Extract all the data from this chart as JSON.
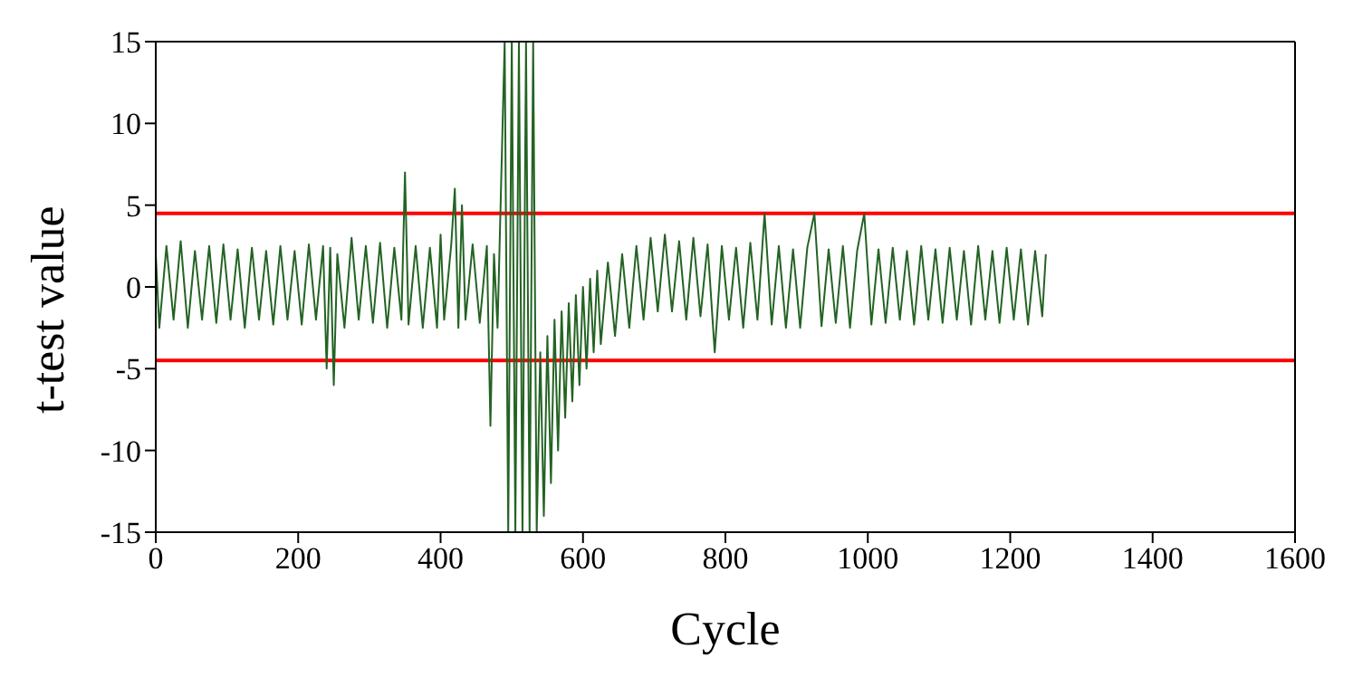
{
  "chart_data": {
    "type": "line",
    "xlabel": "Cycle",
    "ylabel": "t-test value",
    "xlim": [
      0,
      1600
    ],
    "xticks": [
      0,
      200,
      400,
      600,
      800,
      1000,
      1200,
      1400,
      1600
    ],
    "ylim": [
      -15,
      15
    ],
    "yticks": [
      -15,
      -10,
      -5,
      0,
      5,
      10,
      15
    ],
    "legend": false,
    "marker": "none",
    "line_style": "solid",
    "ref_lines": [
      {
        "axis": "y",
        "value": 4.5,
        "color": "#ff0000"
      },
      {
        "axis": "y",
        "value": -4.5,
        "color": "#ff0000"
      }
    ],
    "series": [
      {
        "color": "#236323",
        "x": [
          0,
          5,
          15,
          25,
          35,
          45,
          55,
          65,
          75,
          85,
          95,
          105,
          115,
          125,
          135,
          145,
          155,
          165,
          175,
          185,
          195,
          205,
          215,
          225,
          235,
          240,
          245,
          250,
          255,
          265,
          275,
          285,
          295,
          305,
          315,
          325,
          335,
          345,
          350,
          355,
          365,
          375,
          385,
          395,
          400,
          405,
          415,
          420,
          425,
          430,
          435,
          445,
          455,
          465,
          470,
          475,
          480,
          490,
          495,
          500,
          505,
          510,
          515,
          520,
          525,
          530,
          535,
          540,
          545,
          550,
          555,
          560,
          565,
          570,
          575,
          580,
          585,
          590,
          595,
          600,
          605,
          610,
          615,
          620,
          625,
          635,
          645,
          655,
          665,
          675,
          685,
          695,
          705,
          715,
          725,
          735,
          745,
          755,
          765,
          775,
          785,
          795,
          805,
          815,
          825,
          835,
          845,
          855,
          865,
          875,
          885,
          895,
          905,
          915,
          925,
          935,
          945,
          955,
          965,
          975,
          985,
          995,
          1005,
          1015,
          1025,
          1035,
          1045,
          1055,
          1065,
          1075,
          1085,
          1095,
          1105,
          1115,
          1125,
          1135,
          1145,
          1155,
          1165,
          1175,
          1185,
          1195,
          1205,
          1215,
          1225,
          1235,
          1245,
          1250
        ],
        "values": [
          2,
          -2.5,
          2.5,
          -2,
          2.8,
          -2.5,
          2.2,
          -2,
          2.5,
          -2.2,
          2.6,
          -2,
          2.3,
          -2.5,
          2.4,
          -2,
          2.2,
          -2.3,
          2.5,
          -2,
          2.2,
          -2.3,
          2.6,
          -2,
          2.5,
          -5,
          2.4,
          -6,
          2,
          -2.5,
          3,
          -2,
          2.5,
          -2.2,
          2.7,
          -2.5,
          2.4,
          -2,
          7,
          -2.3,
          2.5,
          -2.5,
          2.4,
          -2.5,
          3.2,
          -2,
          2.6,
          6,
          -2.5,
          5,
          -2,
          2.6,
          -2.2,
          2.5,
          -8.5,
          2,
          -2.5,
          15,
          -15,
          15,
          -15,
          15,
          -15,
          15,
          -15,
          15,
          -15,
          -4,
          -14,
          -3,
          -12,
          -2,
          -10,
          -1.5,
          -8,
          -1,
          -7,
          -0.5,
          -6,
          0,
          -5,
          0.5,
          -4,
          1,
          -3.5,
          1.5,
          -3,
          2,
          -2.5,
          2.5,
          -2,
          3,
          -1.5,
          3.2,
          -1.5,
          2.8,
          -2,
          3,
          -1.8,
          2.6,
          -4,
          2.5,
          -2,
          2.4,
          -2.5,
          2.7,
          -2,
          4.5,
          -2.3,
          2.5,
          -2.5,
          2.3,
          -2.5,
          2.4,
          4.5,
          -2.4,
          2.3,
          -2.2,
          2.5,
          -2.5,
          2.2,
          4.5,
          -2.3,
          2.3,
          -2.2,
          2.4,
          -2,
          2.2,
          -2.3,
          2.5,
          -2,
          2.3,
          -2.2,
          2.4,
          -2,
          2.2,
          -2.3,
          2.5,
          -2,
          2.2,
          -2.2,
          2.4,
          -2,
          2.3,
          -2.3,
          2.2,
          -1.8,
          2
        ]
      }
    ]
  }
}
